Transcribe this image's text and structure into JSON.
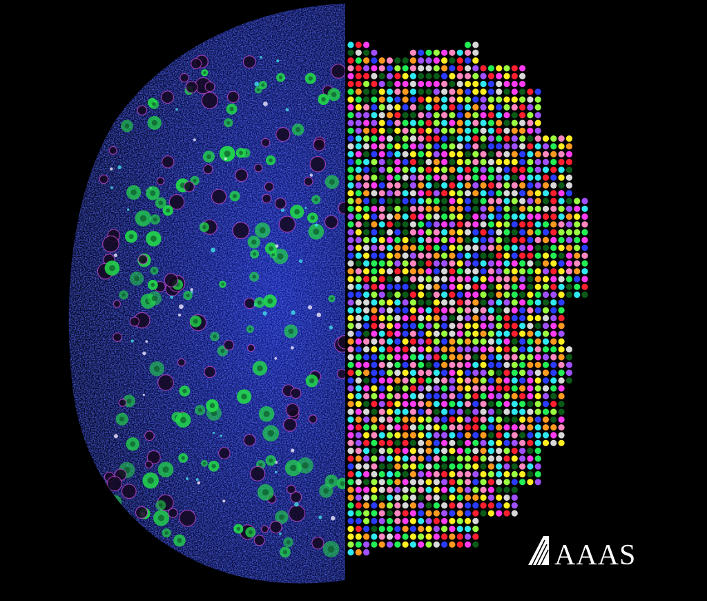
{
  "logo": {
    "text": "AAAS"
  }
}
